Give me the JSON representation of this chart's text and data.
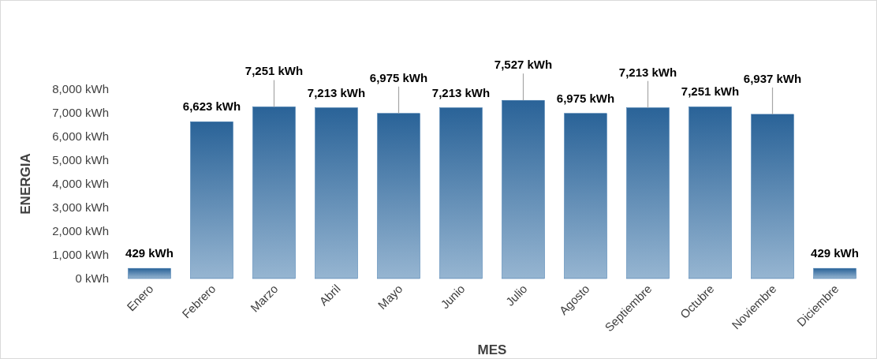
{
  "chart_data": {
    "type": "bar",
    "xlabel": "MES",
    "ylabel": "ENERGIA",
    "categories": [
      "Enero",
      "Febrero",
      "Marzo",
      "Abril",
      "Mayo",
      "Junio",
      "Julio",
      "Agosto",
      "Septiembre",
      "Octubre",
      "Noviembre",
      "Diciembre"
    ],
    "values": [
      429,
      6623,
      7251,
      7213,
      6975,
      7213,
      7527,
      6975,
      7213,
      7251,
      6937,
      429
    ],
    "value_labels": [
      "429 kWh",
      "6,623 kWh",
      "7,251 kWh",
      "7,213 kWh",
      "6,975 kWh",
      "7,213 kWh",
      "7,527 kWh",
      "6,975 kWh",
      "7,213 kWh",
      "7,251 kWh",
      "6,937 kWh",
      "429 kWh"
    ],
    "color": "#2d6aa3",
    "ylim": [
      0,
      8000
    ],
    "yticks": [
      {
        "value": 0,
        "label": "0 kWh"
      },
      {
        "value": 1000,
        "label": "1,000 kWh"
      },
      {
        "value": 2000,
        "label": "2,000 kWh"
      },
      {
        "value": 3000,
        "label": "3,000 kWh"
      },
      {
        "value": 4000,
        "label": "4,000 kWh"
      },
      {
        "value": 5000,
        "label": "5,000 kWh"
      },
      {
        "value": 6000,
        "label": "6,000 kWh"
      },
      {
        "value": 7000,
        "label": "7,000 kWh"
      },
      {
        "value": 8000,
        "label": "8,000 kWh"
      }
    ],
    "grid": false
  }
}
